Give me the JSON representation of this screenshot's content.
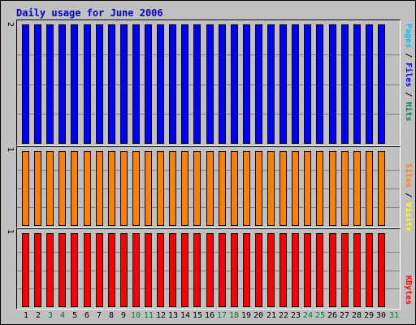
{
  "chart_data": {
    "type": "bar",
    "title": "Daily usage for June 2006",
    "categories": [
      "1",
      "2",
      "3",
      "4",
      "5",
      "6",
      "7",
      "8",
      "9",
      "10",
      "11",
      "12",
      "13",
      "14",
      "15",
      "16",
      "17",
      "18",
      "19",
      "20",
      "21",
      "22",
      "23",
      "24",
      "25",
      "26",
      "27",
      "28",
      "29",
      "30",
      "31"
    ],
    "weekend_days": [
      3,
      4,
      10,
      11,
      17,
      18,
      24,
      25,
      31
    ],
    "weekend_color": "#008040",
    "panels": [
      {
        "id": "hits",
        "ymax_label": "2",
        "ylim": [
          0,
          2
        ],
        "series": [
          {
            "name": "Hits",
            "color": "#0000ff",
            "values": [
              2,
              2,
              2,
              2,
              2,
              2,
              2,
              2,
              2,
              2,
              2,
              2,
              2,
              2,
              2,
              2,
              2,
              2,
              2,
              2,
              2,
              2,
              2,
              2,
              2,
              2,
              2,
              2,
              2,
              2
            ]
          }
        ],
        "side_label": [
          {
            "text": "Pages",
            "color": "#00c0ff"
          },
          {
            "text": " / ",
            "color": "#000000"
          },
          {
            "text": "Files",
            "color": "#0000ff"
          },
          {
            "text": " / ",
            "color": "#000000"
          },
          {
            "text": "Hits",
            "color": "#00805c"
          }
        ]
      },
      {
        "id": "visits",
        "ymax_label": "1",
        "ylim": [
          0,
          1
        ],
        "series": [
          {
            "name": "Visits",
            "color": "#ff8000",
            "values": [
              1,
              1,
              1,
              1,
              1,
              1,
              1,
              1,
              1,
              1,
              1,
              1,
              1,
              1,
              1,
              1,
              1,
              1,
              1,
              1,
              1,
              1,
              1,
              1,
              1,
              1,
              1,
              1,
              1,
              1
            ]
          }
        ],
        "side_label": [
          {
            "text": "Sites",
            "color": "#ff8000"
          },
          {
            "text": " / ",
            "color": "#000000"
          },
          {
            "text": "Visits",
            "color": "#ffff00"
          }
        ]
      },
      {
        "id": "kbytes",
        "ymax_label": "1",
        "ylim": [
          0,
          1
        ],
        "series": [
          {
            "name": "KBytes",
            "color": "#ff0000",
            "values": [
              1,
              1,
              1,
              1,
              1,
              1,
              1,
              1,
              1,
              1,
              1,
              1,
              1,
              1,
              1,
              1,
              1,
              1,
              1,
              1,
              1,
              1,
              1,
              1,
              1,
              1,
              1,
              1,
              1,
              1
            ]
          }
        ],
        "side_label": [
          {
            "text": "KBytes",
            "color": "#ff0000"
          }
        ]
      }
    ]
  }
}
